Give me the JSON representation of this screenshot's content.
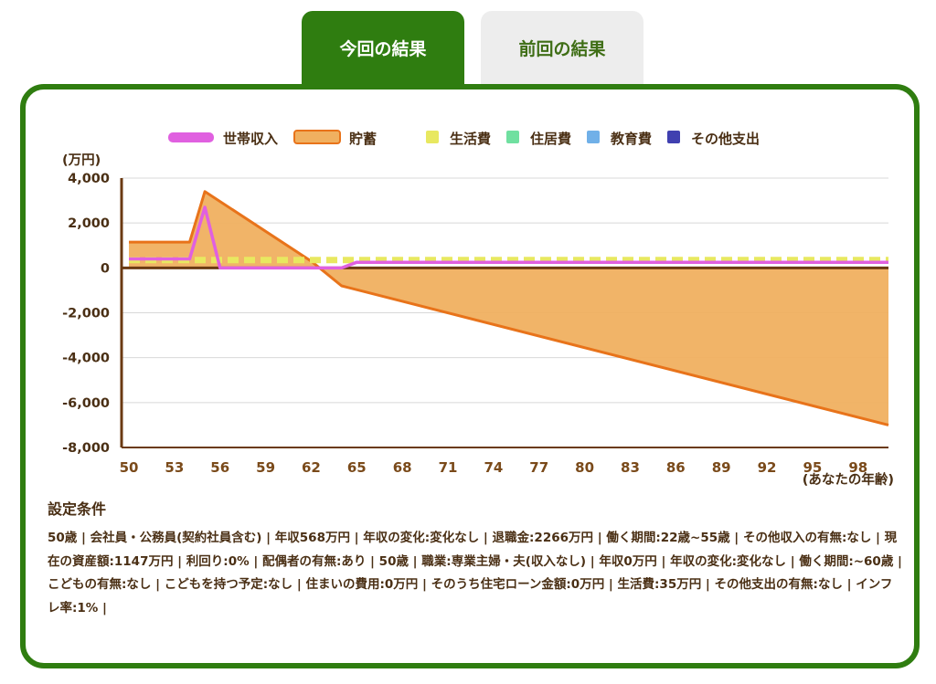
{
  "tabs": [
    {
      "label": "今回の結果",
      "active": true
    },
    {
      "label": "前回の結果",
      "active": false
    }
  ],
  "colors": {
    "tab_active": "#2f7d10",
    "tab_inactive": "#ededed",
    "income": "#e060e0",
    "savings_line": "#e8731a",
    "savings_fill": "#f0b060",
    "living": "#e8e860",
    "housing": "#70e0a0",
    "education": "#70b0e8",
    "other": "#4040b0"
  },
  "chart_data": {
    "type": "line",
    "yunit": "(万円)",
    "xlabel": "(あなたの年齢)",
    "ylim": [
      -8000,
      4000
    ],
    "yticks": [
      4000,
      2000,
      0,
      -2000,
      -4000,
      -6000,
      -8000
    ],
    "ytick_labels": [
      "4,000",
      "2,000",
      "0",
      "-2,000",
      "-4,000",
      "-6,000",
      "-8,000"
    ],
    "xticks": [
      50,
      53,
      56,
      59,
      62,
      65,
      68,
      71,
      74,
      77,
      80,
      83,
      86,
      89,
      92,
      95,
      98
    ],
    "xlim": [
      50,
      100
    ],
    "legend": [
      "世帯収入",
      "貯蓄",
      "生活費",
      "住居費",
      "教育費",
      "その他支出"
    ],
    "series": [
      {
        "name": "世帯収入",
        "type": "line",
        "points": [
          [
            50,
            400
          ],
          [
            54,
            400
          ],
          [
            55,
            2700
          ],
          [
            56,
            0
          ],
          [
            63,
            0
          ],
          [
            64,
            0
          ],
          [
            65,
            250
          ],
          [
            100,
            250
          ]
        ]
      },
      {
        "name": "貯蓄",
        "type": "area",
        "points": [
          [
            50,
            1150
          ],
          [
            54,
            1150
          ],
          [
            55,
            3400
          ],
          [
            62,
            300
          ],
          [
            64,
            -800
          ],
          [
            100,
            -7000
          ]
        ]
      },
      {
        "name": "生活費",
        "type": "dashed",
        "points": [
          [
            50,
            350
          ],
          [
            100,
            350
          ]
        ]
      }
    ]
  },
  "conditions": {
    "title": "設定条件",
    "text": "50歳 | 会社員・公務員(契約社員含む) | 年収568万円 | 年収の変化:変化なし | 退職金:2266万円 | 働く期間:22歳~55歳 |  その他収入の有無:なし  | 現在の資産額:1147万円 | 利回り:0% | 配偶者の有無:あり | 50歳 | 職業:専業主婦・夫(収入なし) | 年収0万円 | 年収の変化:変化なし | 働く期間:~60歳 | こどもの有無:なし | こどもを持つ予定:なし | 住まいの費用:0万円 | そのうち住宅ローン金額:0万円 | 生活費:35万円 |  その他支出の有無:なし  | インフレ率:1% |"
  }
}
